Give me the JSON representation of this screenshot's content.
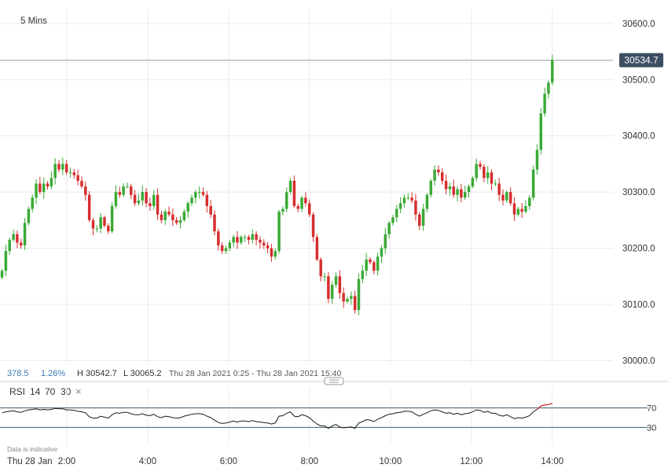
{
  "timeframe": "5 Mins",
  "current_price": {
    "label": "30534.7",
    "value": 30534.7
  },
  "stats": {
    "change_points": "378.5",
    "change_percent": "1.26%",
    "high_label": "H 30542.7",
    "low_label": "L 30065.2",
    "range_label": "Thu 28 Jan 2021 0:25 - Thu 28 Jan 2021 15:40"
  },
  "rsi": {
    "label": "RSI",
    "period": "14",
    "upper": "70",
    "lower": "30",
    "close_icon": "×",
    "upper_level": 70,
    "lower_level": 30
  },
  "footer_note": "Data is indicative",
  "date_label": "Thu 28 Jan",
  "colors": {
    "up": "#3aaa35",
    "down": "#d62e2e",
    "grid": "#ebebeb",
    "price_tag": "#3d4d63",
    "stats_accent": "#3b78b5",
    "rsi_line": "#1a1a1a",
    "rsi_overbought": "#e02020",
    "rsi_band": "#3d5a6c"
  },
  "chart_data": {
    "type": "candlestick",
    "y_ticks": [
      "30600.0",
      "30500.0",
      "30400.0",
      "30300.0",
      "30200.0",
      "30100.0",
      "30000.0"
    ],
    "y_values": [
      30600,
      30500,
      30400,
      30300,
      30200,
      30100,
      30000
    ],
    "x_ticks": [
      "2:00",
      "4:00",
      "6:00",
      "8:00",
      "10:00",
      "12:00",
      "14:00"
    ],
    "x_hours": [
      2,
      4,
      6,
      8,
      10,
      12,
      14
    ],
    "ylim": [
      29995,
      30625
    ],
    "xlim_hours": [
      0.35,
      15.5
    ],
    "closes": [
      30160,
      30195,
      30215,
      30225,
      30210,
      30205,
      30245,
      30270,
      30290,
      30315,
      30300,
      30315,
      30310,
      30325,
      30350,
      30340,
      30350,
      30335,
      30335,
      30330,
      30320,
      30310,
      30295,
      30250,
      30235,
      30235,
      30255,
      30240,
      30230,
      30275,
      30300,
      30295,
      30310,
      30310,
      30295,
      30280,
      30285,
      30300,
      30280,
      30275,
      30295,
      30260,
      30250,
      30265,
      30260,
      30250,
      30245,
      30250,
      30265,
      30280,
      30290,
      30300,
      30300,
      30295,
      30275,
      30260,
      30230,
      30205,
      30195,
      30200,
      30210,
      30220,
      30210,
      30220,
      30220,
      30215,
      30225,
      30215,
      30210,
      30205,
      30200,
      30185,
      30195,
      30265,
      30270,
      30300,
      30320,
      30275,
      30270,
      30290,
      30280,
      30260,
      30220,
      30180,
      30150,
      30150,
      30110,
      30135,
      30150,
      30120,
      30105,
      30110,
      30115,
      30090,
      30145,
      30160,
      30180,
      30175,
      30160,
      30185,
      30200,
      30225,
      30245,
      30255,
      30270,
      30280,
      30290,
      30290,
      30285,
      30260,
      30240,
      30270,
      30295,
      30320,
      30340,
      30335,
      30320,
      30305,
      30310,
      30295,
      30305,
      30290,
      30300,
      30310,
      30325,
      30350,
      30345,
      30325,
      30335,
      30315,
      30315,
      30295,
      30285,
      30300,
      30280,
      30260,
      30270,
      30265,
      30275,
      30290,
      30340,
      30375,
      30440,
      30475,
      30495,
      30535
    ],
    "rsi_values": [
      60,
      62,
      63,
      64,
      62,
      61,
      64,
      66,
      67,
      68,
      66,
      67,
      66,
      67,
      69,
      68,
      68,
      66,
      66,
      65,
      63,
      62,
      60,
      52,
      49,
      49,
      53,
      51,
      49,
      56,
      60,
      59,
      61,
      61,
      58,
      56,
      56,
      58,
      55,
      54,
      57,
      52,
      50,
      53,
      52,
      50,
      49,
      50,
      53,
      55,
      57,
      58,
      58,
      57,
      53,
      50,
      45,
      40,
      38,
      39,
      41,
      43,
      41,
      43,
      43,
      42,
      44,
      42,
      41,
      40,
      39,
      37,
      39,
      53,
      54,
      59,
      62,
      53,
      52,
      56,
      54,
      50,
      43,
      37,
      33,
      33,
      28,
      33,
      36,
      31,
      29,
      30,
      31,
      28,
      39,
      42,
      46,
      45,
      42,
      47,
      50,
      54,
      57,
      58,
      60,
      61,
      63,
      63,
      62,
      57,
      53,
      57,
      60,
      64,
      66,
      65,
      62,
      59,
      60,
      57,
      59,
      56,
      58,
      59,
      62,
      66,
      65,
      61,
      63,
      59,
      59,
      55,
      53,
      56,
      52,
      48,
      50,
      49,
      51,
      54,
      62,
      67,
      74,
      76,
      77,
      79
    ],
    "rsi_ylim": [
      0,
      100
    ]
  }
}
